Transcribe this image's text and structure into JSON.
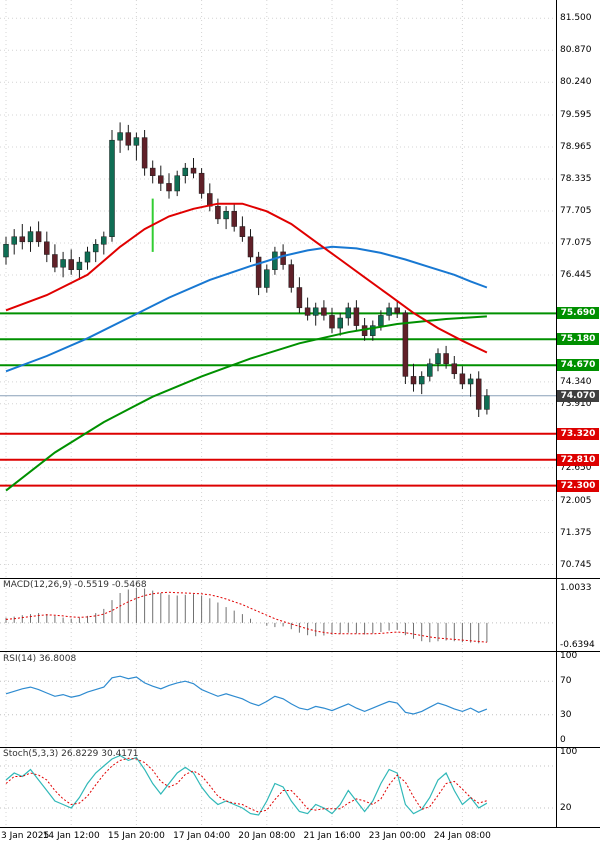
{
  "chart_data": {
    "type": "candlestick",
    "timeframe_labels": [
      "3 Jan 2025",
      "14 Jan 12:00",
      "15 Jan 20:00",
      "17 Jan 04:00",
      "20 Jan 08:00",
      "21 Jan 16:00",
      "23 Jan 00:00",
      "24 Jan 08:00"
    ],
    "main": {
      "price_range": [
        70.48,
        81.86
      ],
      "axis_ticks": [
        {
          "text": "81.500",
          "value": 81.5
        },
        {
          "text": "80.870",
          "value": 80.87
        },
        {
          "text": "80.240",
          "value": 80.24
        },
        {
          "text": "79.595",
          "value": 79.595
        },
        {
          "text": "78.965",
          "value": 78.965
        },
        {
          "text": "78.335",
          "value": 78.335
        },
        {
          "text": "77.705",
          "value": 77.705
        },
        {
          "text": "77.075",
          "value": 77.075
        },
        {
          "text": "76.445",
          "value": 76.445
        },
        {
          "text": "74.340",
          "value": 74.34
        },
        {
          "text": "73.910",
          "value": 73.91
        },
        {
          "text": "72.650",
          "value": 72.65
        },
        {
          "text": "72.005",
          "value": 72.005
        },
        {
          "text": "71.375",
          "value": 71.375
        },
        {
          "text": "70.745",
          "value": 70.745
        }
      ],
      "levels": [
        {
          "text": "75.690",
          "value": 75.69,
          "color": "#009000",
          "kind": "resistance"
        },
        {
          "text": "75.180",
          "value": 75.18,
          "color": "#009000",
          "kind": "resistance"
        },
        {
          "text": "74.670",
          "value": 74.67,
          "color": "#009000",
          "kind": "resistance"
        },
        {
          "text": "74.070",
          "value": 74.07,
          "color": "#3f3f3f",
          "kind": "current"
        },
        {
          "text": "73.320",
          "value": 73.32,
          "color": "#dd0000",
          "kind": "support"
        },
        {
          "text": "72.810",
          "value": 72.81,
          "color": "#dd0000",
          "kind": "support"
        },
        {
          "text": "72.300",
          "value": 72.3,
          "color": "#dd0000",
          "kind": "support"
        }
      ],
      "candles": [
        [
          76.8,
          77.2,
          76.65,
          77.05
        ],
        [
          77.05,
          77.35,
          76.85,
          77.2
        ],
        [
          77.2,
          77.45,
          76.95,
          77.1
        ],
        [
          77.1,
          77.4,
          76.9,
          77.3
        ],
        [
          77.3,
          77.5,
          77.0,
          77.1
        ],
        [
          77.1,
          77.3,
          76.7,
          76.85
        ],
        [
          76.85,
          77.05,
          76.5,
          76.6
        ],
        [
          76.6,
          76.9,
          76.4,
          76.75
        ],
        [
          76.75,
          76.95,
          76.45,
          76.55
        ],
        [
          76.55,
          76.8,
          76.35,
          76.7
        ],
        [
          76.7,
          77.0,
          76.55,
          76.9
        ],
        [
          76.9,
          77.15,
          76.7,
          77.05
        ],
        [
          77.05,
          77.3,
          76.85,
          77.2
        ],
        [
          77.2,
          79.3,
          77.1,
          79.1
        ],
        [
          79.1,
          79.45,
          78.85,
          79.25
        ],
        [
          79.25,
          79.4,
          78.9,
          79.0
        ],
        [
          79.0,
          79.25,
          78.7,
          79.15
        ],
        [
          79.15,
          79.3,
          78.4,
          78.55
        ],
        [
          78.55,
          78.7,
          78.25,
          78.4
        ],
        [
          78.4,
          78.6,
          78.1,
          78.25
        ],
        [
          78.25,
          78.45,
          77.95,
          78.1
        ],
        [
          78.1,
          78.5,
          78.0,
          78.4
        ],
        [
          78.4,
          78.65,
          78.25,
          78.55
        ],
        [
          78.55,
          78.75,
          78.35,
          78.45
        ],
        [
          78.45,
          78.55,
          77.95,
          78.05
        ],
        [
          78.05,
          78.25,
          77.7,
          77.8
        ],
        [
          77.8,
          77.95,
          77.45,
          77.55
        ],
        [
          77.55,
          77.8,
          77.35,
          77.7
        ],
        [
          77.7,
          77.85,
          77.3,
          77.4
        ],
        [
          77.4,
          77.6,
          77.1,
          77.2
        ],
        [
          77.2,
          77.35,
          76.7,
          76.8
        ],
        [
          76.8,
          76.9,
          76.05,
          76.2
        ],
        [
          76.2,
          76.65,
          76.1,
          76.55
        ],
        [
          76.55,
          77.0,
          76.45,
          76.9
        ],
        [
          76.9,
          77.05,
          76.55,
          76.65
        ],
        [
          76.65,
          76.75,
          76.1,
          76.2
        ],
        [
          76.2,
          76.4,
          75.7,
          75.8
        ],
        [
          75.8,
          76.0,
          75.55,
          75.65
        ],
        [
          75.65,
          75.9,
          75.45,
          75.8
        ],
        [
          75.8,
          75.95,
          75.55,
          75.65
        ],
        [
          75.65,
          75.8,
          75.3,
          75.4
        ],
        [
          75.4,
          75.7,
          75.25,
          75.6
        ],
        [
          75.6,
          75.9,
          75.45,
          75.8
        ],
        [
          75.8,
          75.95,
          75.35,
          75.45
        ],
        [
          75.45,
          75.6,
          75.15,
          75.25
        ],
        [
          75.25,
          75.55,
          75.15,
          75.45
        ],
        [
          75.45,
          75.75,
          75.35,
          75.65
        ],
        [
          75.65,
          75.9,
          75.55,
          75.8
        ],
        [
          75.8,
          75.95,
          75.6,
          75.7
        ],
        [
          75.7,
          75.75,
          74.3,
          74.45
        ],
        [
          74.45,
          74.7,
          74.15,
          74.3
        ],
        [
          74.3,
          74.55,
          74.1,
          74.45
        ],
        [
          74.45,
          74.8,
          74.35,
          74.7
        ],
        [
          74.7,
          75.0,
          74.55,
          74.9
        ],
        [
          74.9,
          75.05,
          74.6,
          74.7
        ],
        [
          74.7,
          74.85,
          74.4,
          74.5
        ],
        [
          74.5,
          74.65,
          74.2,
          74.3
        ],
        [
          74.3,
          74.5,
          74.05,
          74.4
        ],
        [
          74.4,
          74.55,
          73.65,
          73.8
        ],
        [
          73.8,
          74.2,
          73.7,
          74.07
        ]
      ],
      "ma": [
        {
          "name": "ma-green",
          "color": "#009000",
          "width": 2,
          "points": [
            [
              0,
              72.2
            ],
            [
              6,
              72.95
            ],
            [
              12,
              73.55
            ],
            [
              18,
              74.05
            ],
            [
              24,
              74.45
            ],
            [
              30,
              74.8
            ],
            [
              36,
              75.1
            ],
            [
              42,
              75.32
            ],
            [
              48,
              75.48
            ],
            [
              54,
              75.58
            ],
            [
              59,
              75.63
            ]
          ]
        },
        {
          "name": "ma-blue",
          "color": "#1878d2",
          "width": 2,
          "points": [
            [
              0,
              74.55
            ],
            [
              5,
              74.85
            ],
            [
              10,
              75.2
            ],
            [
              15,
              75.6
            ],
            [
              20,
              76.0
            ],
            [
              25,
              76.35
            ],
            [
              30,
              76.62
            ],
            [
              34,
              76.82
            ],
            [
              37,
              76.93
            ],
            [
              40,
              77.0
            ],
            [
              43,
              76.97
            ],
            [
              46,
              76.88
            ],
            [
              49,
              76.75
            ],
            [
              52,
              76.6
            ],
            [
              55,
              76.45
            ],
            [
              57,
              76.32
            ],
            [
              59,
              76.2
            ]
          ]
        },
        {
          "name": "ma-red",
          "color": "#e00000",
          "width": 2,
          "points": [
            [
              0,
              75.75
            ],
            [
              5,
              76.05
            ],
            [
              10,
              76.45
            ],
            [
              14,
              77.0
            ],
            [
              17,
              77.35
            ],
            [
              20,
              77.6
            ],
            [
              23,
              77.75
            ],
            [
              26,
              77.85
            ],
            [
              29,
              77.85
            ],
            [
              32,
              77.7
            ],
            [
              35,
              77.45
            ],
            [
              38,
              77.1
            ],
            [
              41,
              76.75
            ],
            [
              44,
              76.4
            ],
            [
              47,
              76.05
            ],
            [
              50,
              75.7
            ],
            [
              53,
              75.4
            ],
            [
              56,
              75.15
            ],
            [
              59,
              74.92
            ]
          ]
        }
      ],
      "marker": {
        "index": 18,
        "price_from": 76.9,
        "price_to": 77.95,
        "color": "#32cd32"
      },
      "colors": {
        "up": "#0f6e54",
        "down": "#602028",
        "wick": "#1a1a1a",
        "grid": "#d4d4d4",
        "current_line": "#8aa0b8"
      }
    },
    "macd": {
      "label": "MACD(12,26,9) -0.5519 -0.5468",
      "range": [
        -0.8,
        1.25
      ],
      "axis": [
        {
          "text": "1.0033",
          "value": 1.0033
        },
        {
          "text": "-0.6394",
          "value": -0.6394
        }
      ],
      "histogram": [
        0.15,
        0.18,
        0.22,
        0.25,
        0.28,
        0.25,
        0.2,
        0.15,
        0.12,
        0.15,
        0.2,
        0.28,
        0.4,
        0.65,
        0.85,
        0.95,
        1.0,
        0.98,
        0.92,
        0.85,
        0.8,
        0.78,
        0.8,
        0.82,
        0.78,
        0.7,
        0.58,
        0.45,
        0.35,
        0.25,
        0.12,
        0.0,
        -0.08,
        -0.12,
        -0.1,
        -0.18,
        -0.28,
        -0.35,
        -0.38,
        -0.36,
        -0.34,
        -0.32,
        -0.28,
        -0.3,
        -0.33,
        -0.3,
        -0.26,
        -0.22,
        -0.2,
        -0.35,
        -0.45,
        -0.52,
        -0.55,
        -0.52,
        -0.5,
        -0.52,
        -0.55,
        -0.56,
        -0.58,
        -0.55
      ],
      "signal": [
        0.1,
        0.12,
        0.15,
        0.18,
        0.21,
        0.23,
        0.22,
        0.2,
        0.17,
        0.16,
        0.17,
        0.2,
        0.25,
        0.35,
        0.48,
        0.6,
        0.7,
        0.78,
        0.83,
        0.86,
        0.87,
        0.86,
        0.85,
        0.84,
        0.83,
        0.8,
        0.75,
        0.68,
        0.6,
        0.52,
        0.42,
        0.32,
        0.22,
        0.12,
        0.04,
        -0.03,
        -0.1,
        -0.17,
        -0.23,
        -0.27,
        -0.3,
        -0.31,
        -0.31,
        -0.31,
        -0.31,
        -0.31,
        -0.3,
        -0.28,
        -0.26,
        -0.28,
        -0.32,
        -0.36,
        -0.4,
        -0.43,
        -0.45,
        -0.47,
        -0.49,
        -0.51,
        -0.53,
        -0.55
      ],
      "colors": {
        "hist": "#707070",
        "signal": "#e00000"
      }
    },
    "rsi": {
      "label": "RSI(14) 36.8008",
      "range": [
        0,
        100
      ],
      "axis": [
        {
          "text": "100",
          "value": 100
        },
        {
          "text": "70",
          "value": 70
        },
        {
          "text": "30",
          "value": 30
        },
        {
          "text": "0",
          "value": 0
        }
      ],
      "levels": [
        70,
        30
      ],
      "values": [
        55,
        58,
        61,
        63,
        60,
        56,
        52,
        54,
        51,
        53,
        57,
        60,
        63,
        74,
        76,
        73,
        75,
        68,
        64,
        61,
        65,
        68,
        70,
        67,
        60,
        56,
        52,
        55,
        52,
        49,
        44,
        41,
        46,
        52,
        49,
        43,
        38,
        36,
        40,
        38,
        35,
        39,
        43,
        38,
        34,
        38,
        42,
        46,
        44,
        33,
        31,
        34,
        39,
        44,
        41,
        37,
        34,
        38,
        33,
        36.8
      ],
      "color": "#2e8bd0"
    },
    "stoch": {
      "label": "Stoch(5,3,3) 26.8229 30.4171",
      "range": [
        0,
        100
      ],
      "axis": [
        {
          "text": "100",
          "value": 100
        },
        {
          "text": "20",
          "value": 20
        }
      ],
      "levels": [
        80,
        20
      ],
      "k": [
        60,
        70,
        65,
        75,
        60,
        45,
        30,
        25,
        20,
        35,
        55,
        70,
        80,
        90,
        95,
        88,
        92,
        75,
        55,
        40,
        55,
        70,
        78,
        70,
        50,
        35,
        25,
        30,
        25,
        20,
        12,
        10,
        30,
        55,
        50,
        30,
        15,
        12,
        25,
        20,
        12,
        25,
        45,
        30,
        15,
        30,
        55,
        75,
        70,
        25,
        12,
        18,
        35,
        60,
        70,
        45,
        25,
        35,
        20,
        26.8
      ],
      "d": [
        55,
        65,
        65,
        70,
        67,
        60,
        45,
        33,
        25,
        27,
        37,
        53,
        68,
        80,
        88,
        91,
        90,
        85,
        74,
        58,
        50,
        55,
        68,
        73,
        66,
        52,
        37,
        30,
        27,
        25,
        19,
        14,
        17,
        32,
        45,
        45,
        33,
        19,
        17,
        19,
        19,
        19,
        27,
        33,
        30,
        25,
        33,
        53,
        67,
        57,
        36,
        18,
        22,
        38,
        55,
        58,
        47,
        35,
        27,
        30.4
      ],
      "colors": {
        "k": "#30b8b8",
        "d": "#e00000"
      }
    }
  }
}
